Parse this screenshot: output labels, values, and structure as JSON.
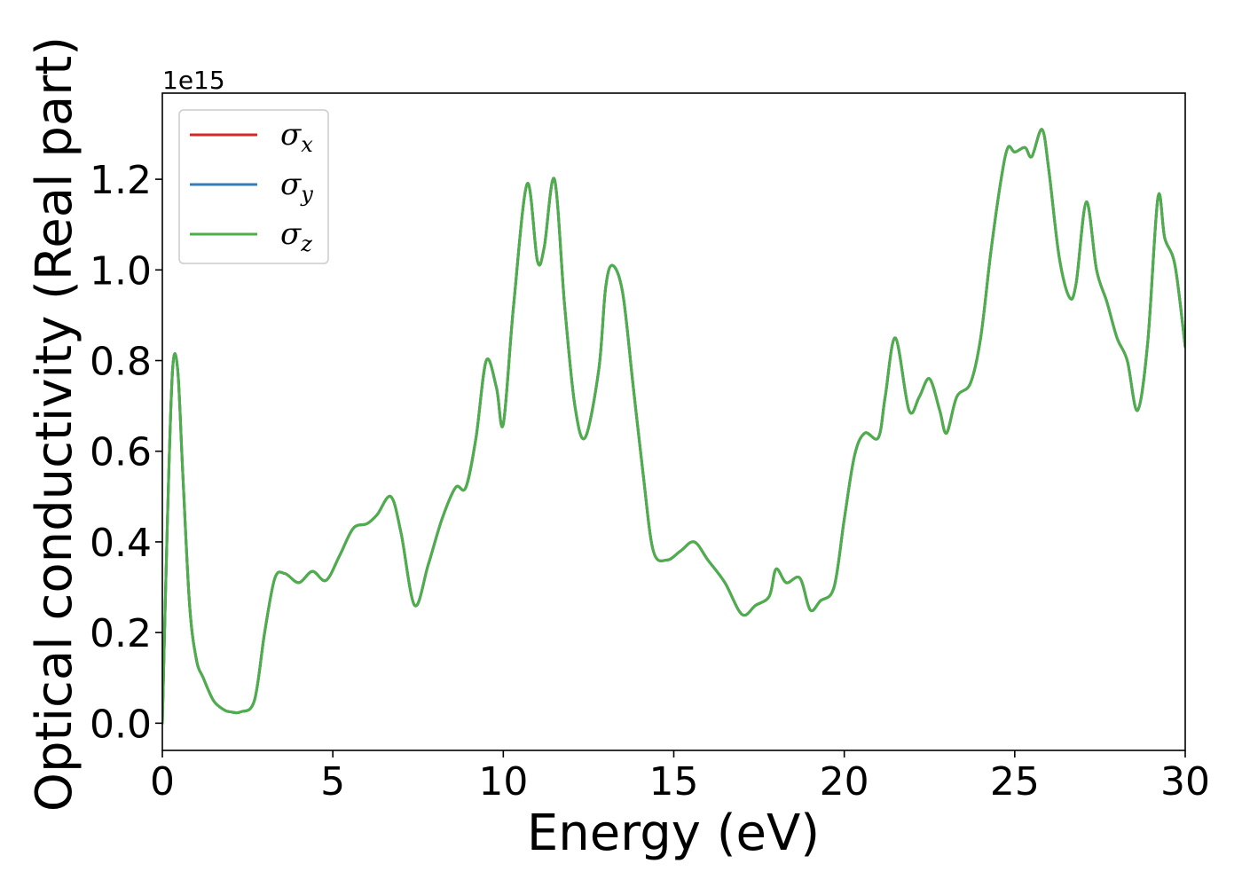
{
  "chart_data": {
    "type": "line",
    "xlabel": "Energy (eV)",
    "ylabel": "Optical conductivity (Real part)",
    "y_offset_text": "1e15",
    "xlim": [
      0,
      30
    ],
    "ylim": [
      -0.06,
      1.39
    ],
    "xticks": [
      0,
      5,
      10,
      15,
      20,
      25,
      30
    ],
    "xtick_labels": [
      "0",
      "5",
      "10",
      "15",
      "20",
      "25",
      "30"
    ],
    "yticks": [
      0.0,
      0.2,
      0.4,
      0.6,
      0.8,
      1.0,
      1.2
    ],
    "ytick_labels": [
      "0.0",
      "0.2",
      "0.4",
      "0.6",
      "0.8",
      "1.0",
      "1.2"
    ],
    "grid": false,
    "legend_position": "top-left",
    "series": [
      {
        "name": "σx",
        "symbol": "σ",
        "subscript": "x",
        "color": "#d62728",
        "x": [
          0,
          0.15,
          0.3,
          0.45,
          0.6,
          0.8,
          1.0,
          1.2,
          1.5,
          1.8,
          2.0,
          2.3,
          2.7,
          3.0,
          3.3,
          3.6,
          4.0,
          4.4,
          4.8,
          5.2,
          5.6,
          6.0,
          6.3,
          6.7,
          7.0,
          7.4,
          7.8,
          8.2,
          8.6,
          8.9,
          9.2,
          9.5,
          9.8,
          10.0,
          10.3,
          10.7,
          11.0,
          11.2,
          11.5,
          11.8,
          12.1,
          12.4,
          12.8,
          13.0,
          13.2,
          13.5,
          13.8,
          14.1,
          14.4,
          14.8,
          15.2,
          15.6,
          16.0,
          16.5,
          17.0,
          17.4,
          17.8,
          18.0,
          18.3,
          18.7,
          19.0,
          19.3,
          19.7,
          20.0,
          20.3,
          20.6,
          21.0,
          21.2,
          21.5,
          21.9,
          22.2,
          22.5,
          22.8,
          23.0,
          23.3,
          23.7,
          24.0,
          24.3,
          24.6,
          24.8,
          25.0,
          25.3,
          25.5,
          25.8,
          26.0,
          26.3,
          26.6,
          26.8,
          27.1,
          27.4,
          27.7,
          28.0,
          28.3,
          28.6,
          28.9,
          29.2,
          29.4,
          29.7,
          30.0
        ],
        "y": [
          0.0,
          0.45,
          0.78,
          0.78,
          0.55,
          0.26,
          0.14,
          0.1,
          0.05,
          0.03,
          0.025,
          0.025,
          0.05,
          0.2,
          0.32,
          0.33,
          0.31,
          0.335,
          0.315,
          0.37,
          0.43,
          0.44,
          0.46,
          0.5,
          0.42,
          0.26,
          0.35,
          0.45,
          0.52,
          0.52,
          0.63,
          0.8,
          0.74,
          0.66,
          0.92,
          1.19,
          1.02,
          1.05,
          1.2,
          0.92,
          0.7,
          0.63,
          0.78,
          0.96,
          1.01,
          0.95,
          0.75,
          0.55,
          0.38,
          0.36,
          0.38,
          0.4,
          0.36,
          0.31,
          0.24,
          0.26,
          0.28,
          0.34,
          0.31,
          0.32,
          0.25,
          0.27,
          0.3,
          0.45,
          0.59,
          0.64,
          0.63,
          0.72,
          0.85,
          0.69,
          0.72,
          0.76,
          0.69,
          0.64,
          0.72,
          0.75,
          0.85,
          1.04,
          1.2,
          1.27,
          1.26,
          1.27,
          1.25,
          1.31,
          1.22,
          1.03,
          0.94,
          0.97,
          1.15,
          1.0,
          0.93,
          0.85,
          0.8,
          0.69,
          0.84,
          1.16,
          1.07,
          1.01,
          0.83
        ]
      },
      {
        "name": "σy",
        "symbol": "σ",
        "subscript": "y",
        "color": "#377eb8",
        "x": [
          0,
          0.15,
          0.3,
          0.45,
          0.6,
          0.8,
          1.0,
          1.2,
          1.5,
          1.8,
          2.0,
          2.3,
          2.7,
          3.0,
          3.3,
          3.6,
          4.0,
          4.4,
          4.8,
          5.2,
          5.6,
          6.0,
          6.3,
          6.7,
          7.0,
          7.4,
          7.8,
          8.2,
          8.6,
          8.9,
          9.2,
          9.5,
          9.8,
          10.0,
          10.3,
          10.7,
          11.0,
          11.2,
          11.5,
          11.8,
          12.1,
          12.4,
          12.8,
          13.0,
          13.2,
          13.5,
          13.8,
          14.1,
          14.4,
          14.8,
          15.2,
          15.6,
          16.0,
          16.5,
          17.0,
          17.4,
          17.8,
          18.0,
          18.3,
          18.7,
          19.0,
          19.3,
          19.7,
          20.0,
          20.3,
          20.6,
          21.0,
          21.2,
          21.5,
          21.9,
          22.2,
          22.5,
          22.8,
          23.0,
          23.3,
          23.7,
          24.0,
          24.3,
          24.6,
          24.8,
          25.0,
          25.3,
          25.5,
          25.8,
          26.0,
          26.3,
          26.6,
          26.8,
          27.1,
          27.4,
          27.7,
          28.0,
          28.3,
          28.6,
          28.9,
          29.2,
          29.4,
          29.7,
          30.0
        ],
        "y": [
          0.0,
          0.45,
          0.78,
          0.78,
          0.55,
          0.26,
          0.14,
          0.1,
          0.05,
          0.03,
          0.025,
          0.025,
          0.05,
          0.2,
          0.32,
          0.33,
          0.31,
          0.335,
          0.315,
          0.37,
          0.43,
          0.44,
          0.46,
          0.5,
          0.42,
          0.26,
          0.35,
          0.45,
          0.52,
          0.52,
          0.63,
          0.8,
          0.74,
          0.66,
          0.92,
          1.19,
          1.02,
          1.05,
          1.2,
          0.92,
          0.7,
          0.63,
          0.78,
          0.96,
          1.01,
          0.95,
          0.75,
          0.55,
          0.38,
          0.36,
          0.38,
          0.4,
          0.36,
          0.31,
          0.24,
          0.26,
          0.28,
          0.34,
          0.31,
          0.32,
          0.25,
          0.27,
          0.3,
          0.45,
          0.59,
          0.64,
          0.63,
          0.72,
          0.85,
          0.69,
          0.72,
          0.76,
          0.69,
          0.64,
          0.72,
          0.75,
          0.85,
          1.04,
          1.2,
          1.27,
          1.26,
          1.27,
          1.25,
          1.31,
          1.22,
          1.03,
          0.94,
          0.97,
          1.15,
          1.0,
          0.93,
          0.85,
          0.8,
          0.69,
          0.84,
          1.16,
          1.07,
          1.01,
          0.83
        ]
      },
      {
        "name": "σz",
        "symbol": "σ",
        "subscript": "z",
        "color": "#4daf4a",
        "x": [
          0,
          0.15,
          0.3,
          0.45,
          0.6,
          0.8,
          1.0,
          1.2,
          1.5,
          1.8,
          2.0,
          2.3,
          2.7,
          3.0,
          3.3,
          3.6,
          4.0,
          4.4,
          4.8,
          5.2,
          5.6,
          6.0,
          6.3,
          6.7,
          7.0,
          7.4,
          7.8,
          8.2,
          8.6,
          8.9,
          9.2,
          9.5,
          9.8,
          10.0,
          10.3,
          10.7,
          11.0,
          11.2,
          11.5,
          11.8,
          12.1,
          12.4,
          12.8,
          13.0,
          13.2,
          13.5,
          13.8,
          14.1,
          14.4,
          14.8,
          15.2,
          15.6,
          16.0,
          16.5,
          17.0,
          17.4,
          17.8,
          18.0,
          18.3,
          18.7,
          19.0,
          19.3,
          19.7,
          20.0,
          20.3,
          20.6,
          21.0,
          21.2,
          21.5,
          21.9,
          22.2,
          22.5,
          22.8,
          23.0,
          23.3,
          23.7,
          24.0,
          24.3,
          24.6,
          24.8,
          25.0,
          25.3,
          25.5,
          25.8,
          26.0,
          26.3,
          26.6,
          26.8,
          27.1,
          27.4,
          27.7,
          28.0,
          28.3,
          28.6,
          28.9,
          29.2,
          29.4,
          29.7,
          30.0
        ],
        "y": [
          0.0,
          0.45,
          0.78,
          0.78,
          0.55,
          0.26,
          0.14,
          0.1,
          0.05,
          0.03,
          0.025,
          0.025,
          0.05,
          0.2,
          0.32,
          0.33,
          0.31,
          0.335,
          0.315,
          0.37,
          0.43,
          0.44,
          0.46,
          0.5,
          0.42,
          0.26,
          0.35,
          0.45,
          0.52,
          0.52,
          0.63,
          0.8,
          0.74,
          0.66,
          0.92,
          1.19,
          1.02,
          1.05,
          1.2,
          0.92,
          0.7,
          0.63,
          0.78,
          0.96,
          1.01,
          0.95,
          0.75,
          0.55,
          0.38,
          0.36,
          0.38,
          0.4,
          0.36,
          0.31,
          0.24,
          0.26,
          0.28,
          0.34,
          0.31,
          0.32,
          0.25,
          0.27,
          0.3,
          0.45,
          0.59,
          0.64,
          0.63,
          0.72,
          0.85,
          0.69,
          0.72,
          0.76,
          0.69,
          0.64,
          0.72,
          0.75,
          0.85,
          1.04,
          1.2,
          1.27,
          1.26,
          1.27,
          1.25,
          1.31,
          1.22,
          1.03,
          0.94,
          0.97,
          1.15,
          1.0,
          0.93,
          0.85,
          0.8,
          0.69,
          0.84,
          1.16,
          1.07,
          1.01,
          0.83
        ]
      }
    ]
  }
}
